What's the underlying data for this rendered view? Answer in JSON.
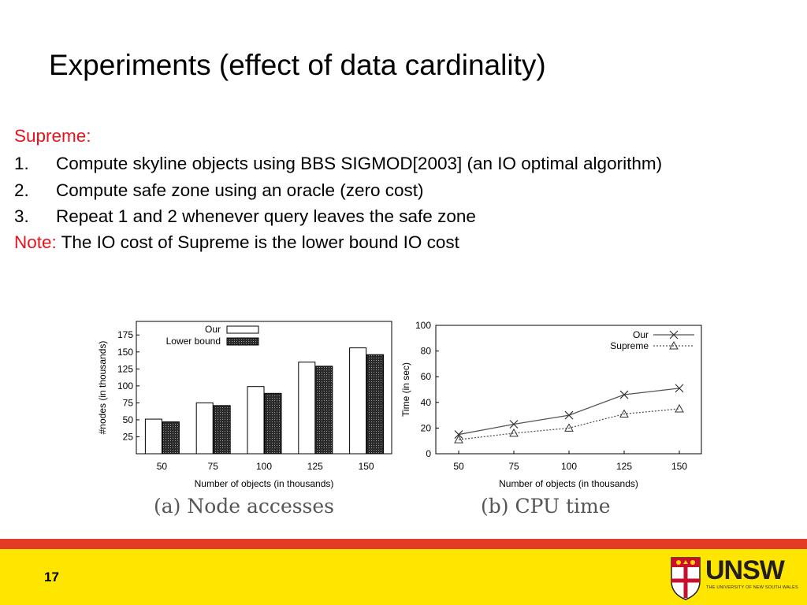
{
  "slide": {
    "title": "Experiments (effect of data cardinality)",
    "section_label": "Supreme:",
    "items": [
      {
        "num": "1.",
        "text": "Compute skyline objects using BBS SIGMOD[2003] (an IO optimal algorithm)"
      },
      {
        "num": "2.",
        "text": "Compute safe zone using an oracle (zero cost)"
      },
      {
        "num": "3.",
        "text": "Repeat 1 and 2 whenever query leaves the safe zone"
      }
    ],
    "note_label": "Note:",
    "note_text": "The IO cost of Supreme is the lower bound IO cost",
    "page_number": "17"
  },
  "logo": {
    "text": "UNSW",
    "subtitle": "THE UNIVERSITY OF NEW SOUTH WALES"
  },
  "colors": {
    "accent_red": "#e8121c",
    "stripe_red": "#e23d24",
    "footer_yellow": "#ffe600"
  },
  "chart_data": [
    {
      "type": "bar",
      "caption": "(a) Node accesses",
      "xlabel": "Number of objects (in thousands)",
      "ylabel": "#nodes (in thousands)",
      "categories": [
        "50",
        "75",
        "100",
        "125",
        "150"
      ],
      "yticks": [
        25,
        50,
        75,
        100,
        125,
        150,
        175
      ],
      "ylim": [
        0,
        195
      ],
      "legend_position": "top-left",
      "series": [
        {
          "name": "Our",
          "values": [
            51,
            75,
            99,
            135,
            156
          ],
          "fill": "white"
        },
        {
          "name": "Lower bound",
          "values": [
            47,
            71,
            89,
            129,
            146
          ],
          "fill": "dark-hatched"
        }
      ]
    },
    {
      "type": "line",
      "caption": "(b) CPU time",
      "xlabel": "Number of objects (in thousands)",
      "ylabel": "Time (in sec)",
      "x": [
        50,
        75,
        100,
        125,
        150
      ],
      "yticks": [
        0,
        20,
        40,
        60,
        80,
        100
      ],
      "ylim": [
        0,
        100
      ],
      "legend_position": "top-right",
      "series": [
        {
          "name": "Our",
          "values": [
            15,
            23,
            30,
            46,
            51
          ],
          "marker": "x",
          "line": "solid"
        },
        {
          "name": "Supreme",
          "values": [
            11,
            16,
            20,
            31,
            35
          ],
          "marker": "triangle",
          "line": "dotted"
        }
      ]
    }
  ]
}
